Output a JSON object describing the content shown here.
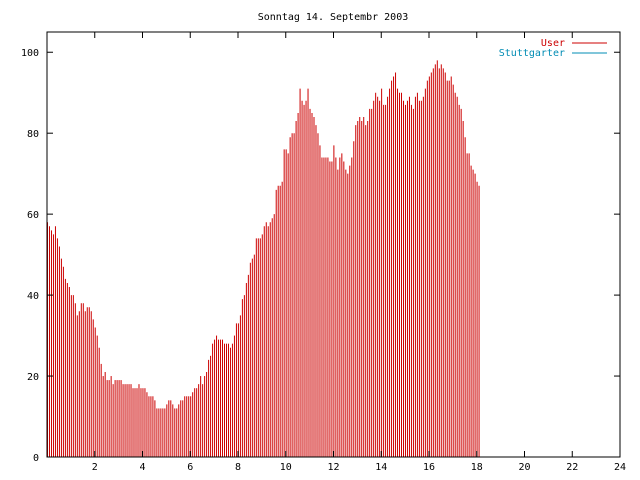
{
  "chart_data": {
    "type": "bar",
    "title": "Sonntag 14. Septembr 2003",
    "xlabel": "",
    "ylabel": "",
    "xlim": [
      0,
      24
    ],
    "ylim": [
      0,
      105
    ],
    "xticks": [
      2,
      4,
      6,
      8,
      10,
      12,
      14,
      16,
      18,
      20,
      22,
      24
    ],
    "yticks": [
      0,
      20,
      40,
      60,
      80,
      100
    ],
    "grid": false,
    "legend_position": "top-right",
    "colors": {
      "user": "#cc0000",
      "stuttgarter": "#008cb4",
      "axis": "#000000",
      "title": "#000000"
    },
    "legend": [
      {
        "name": "User",
        "color": "#cc0000"
      },
      {
        "name": "Stuttgarter",
        "color": "#008cb4"
      }
    ],
    "series": [
      {
        "name": "User",
        "x_start": 0,
        "x_step": 0.0833,
        "values": [
          58,
          57,
          56,
          55,
          57,
          54,
          52,
          49,
          47,
          44,
          43,
          42,
          40,
          40,
          38,
          35,
          36,
          38,
          38,
          36,
          37,
          37,
          36,
          34,
          32,
          30,
          27,
          23,
          20,
          21,
          19,
          19,
          20,
          18,
          19,
          19,
          19,
          19,
          18,
          18,
          18,
          18,
          18,
          17,
          17,
          17,
          18,
          17,
          17,
          17,
          16,
          15,
          15,
          15,
          14,
          12,
          12,
          12,
          12,
          12,
          13,
          14,
          14,
          13,
          12,
          12,
          13,
          14,
          14,
          15,
          15,
          15,
          15,
          16,
          17,
          17,
          18,
          20,
          18,
          20,
          21,
          24,
          25,
          28,
          29,
          30,
          29,
          29,
          29,
          28,
          28,
          28,
          27,
          28,
          30,
          33,
          33,
          35,
          39,
          40,
          43,
          45,
          48,
          49,
          50,
          54,
          54,
          54,
          55,
          57,
          58,
          57,
          58,
          59,
          60,
          66,
          67,
          67,
          68,
          76,
          76,
          75,
          79,
          80,
          80,
          83,
          85,
          91,
          88,
          87,
          88,
          91,
          86,
          85,
          84,
          82,
          80,
          77,
          74,
          74,
          74,
          74,
          73,
          73,
          77,
          74,
          71,
          74,
          75,
          73,
          71,
          70,
          72,
          74,
          78,
          82,
          83,
          84,
          83,
          84,
          82,
          83,
          86,
          86,
          88,
          90,
          89,
          88,
          91,
          87,
          87,
          89,
          91,
          93,
          94,
          95,
          91,
          90,
          90,
          88,
          87,
          88,
          89,
          87,
          86,
          89,
          90,
          88,
          88,
          89,
          91,
          93,
          94,
          95,
          96,
          97,
          98,
          96,
          97,
          96,
          95,
          93,
          93,
          94,
          92,
          90,
          89,
          87,
          86,
          83,
          79,
          75,
          75,
          72,
          71,
          70,
          68,
          67
        ]
      },
      {
        "name": "Stuttgarter",
        "values": []
      }
    ]
  }
}
